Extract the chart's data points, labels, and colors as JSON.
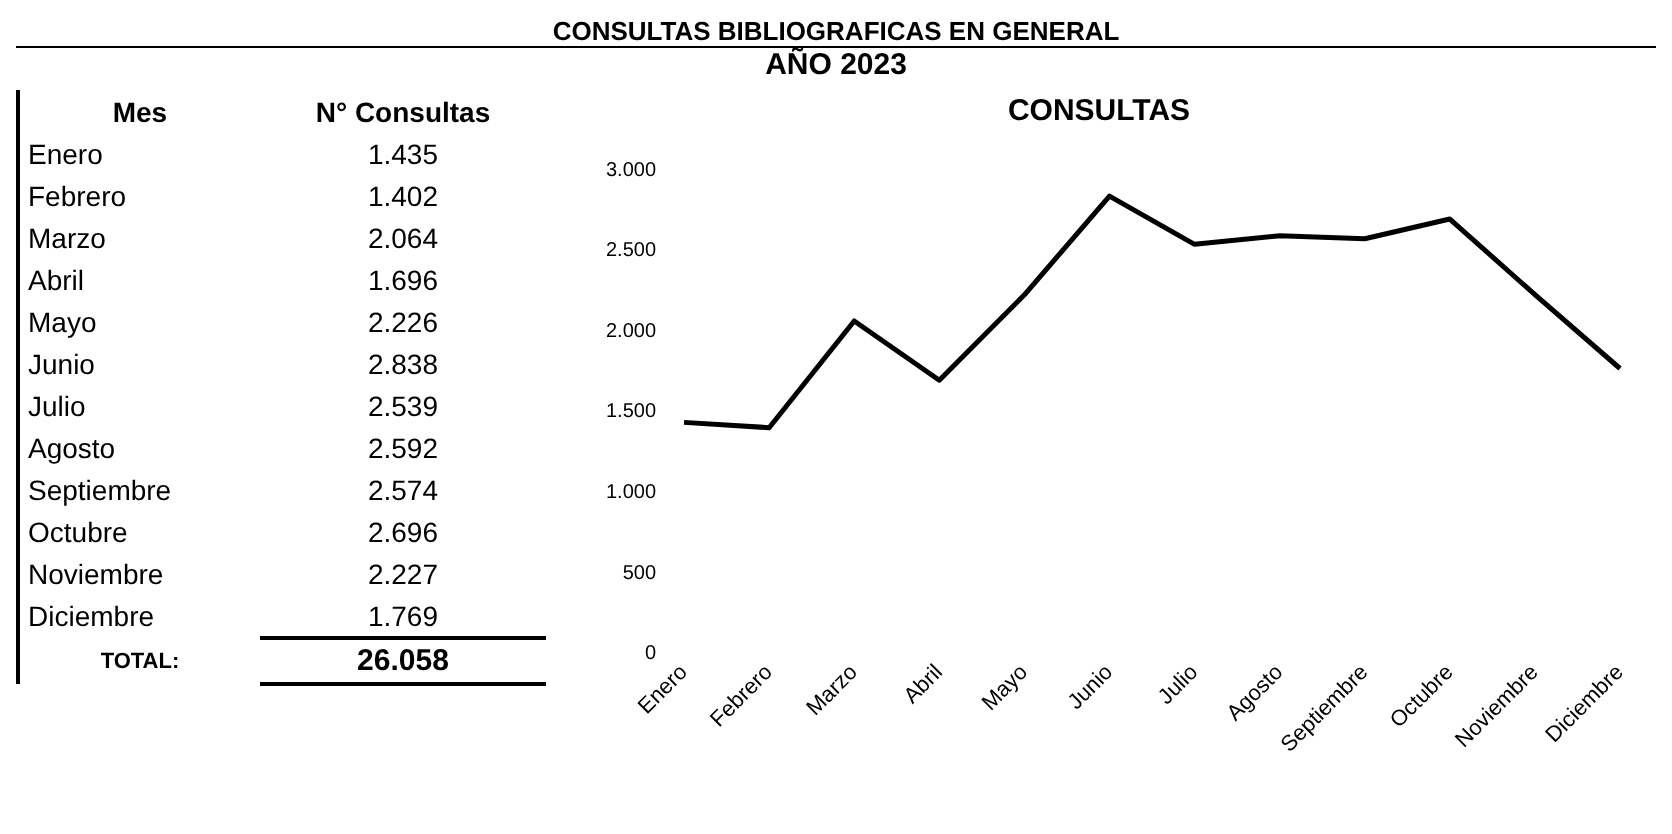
{
  "chart_data": {
    "type": "line",
    "title": "CONSULTAS",
    "annotations": [
      "CONSULTAS BIBLIOGRAFICAS EN GENERAL",
      "AÑO 2023",
      "Mes",
      "N° Consultas",
      "TOTAL:",
      "26.058",
      "1.435",
      "1.402",
      "2.064",
      "1.696",
      "2.226",
      "2.838",
      "2.539",
      "2.592",
      "2.574",
      "2.696",
      "2.227",
      "1.769"
    ],
    "categories": [
      "Enero",
      "Febrero",
      "Marzo",
      "Abril",
      "Mayo",
      "Junio",
      "Julio",
      "Agosto",
      "Septiembre",
      "Octubre",
      "Noviembre",
      "Diciembre"
    ],
    "series": [
      {
        "color": "#000000",
        "values": [
          1435,
          1402,
          2064,
          1696,
          2226,
          2838,
          2539,
          2592,
          2574,
          2696,
          2227,
          1769
        ]
      }
    ],
    "ylim": [
      0,
      3000
    ],
    "yticks": [
      {
        "value": 0,
        "label": "0"
      },
      {
        "value": 500,
        "label": "500"
      },
      {
        "value": 1000,
        "label": "1.000"
      },
      {
        "value": 1500,
        "label": "1.500"
      },
      {
        "value": 2000,
        "label": "2.000"
      },
      {
        "value": 2500,
        "label": "2.500"
      },
      {
        "value": 3000,
        "label": "3.000"
      }
    ],
    "grid": false,
    "legend": false,
    "marker": "none",
    "line_style": "solid"
  }
}
